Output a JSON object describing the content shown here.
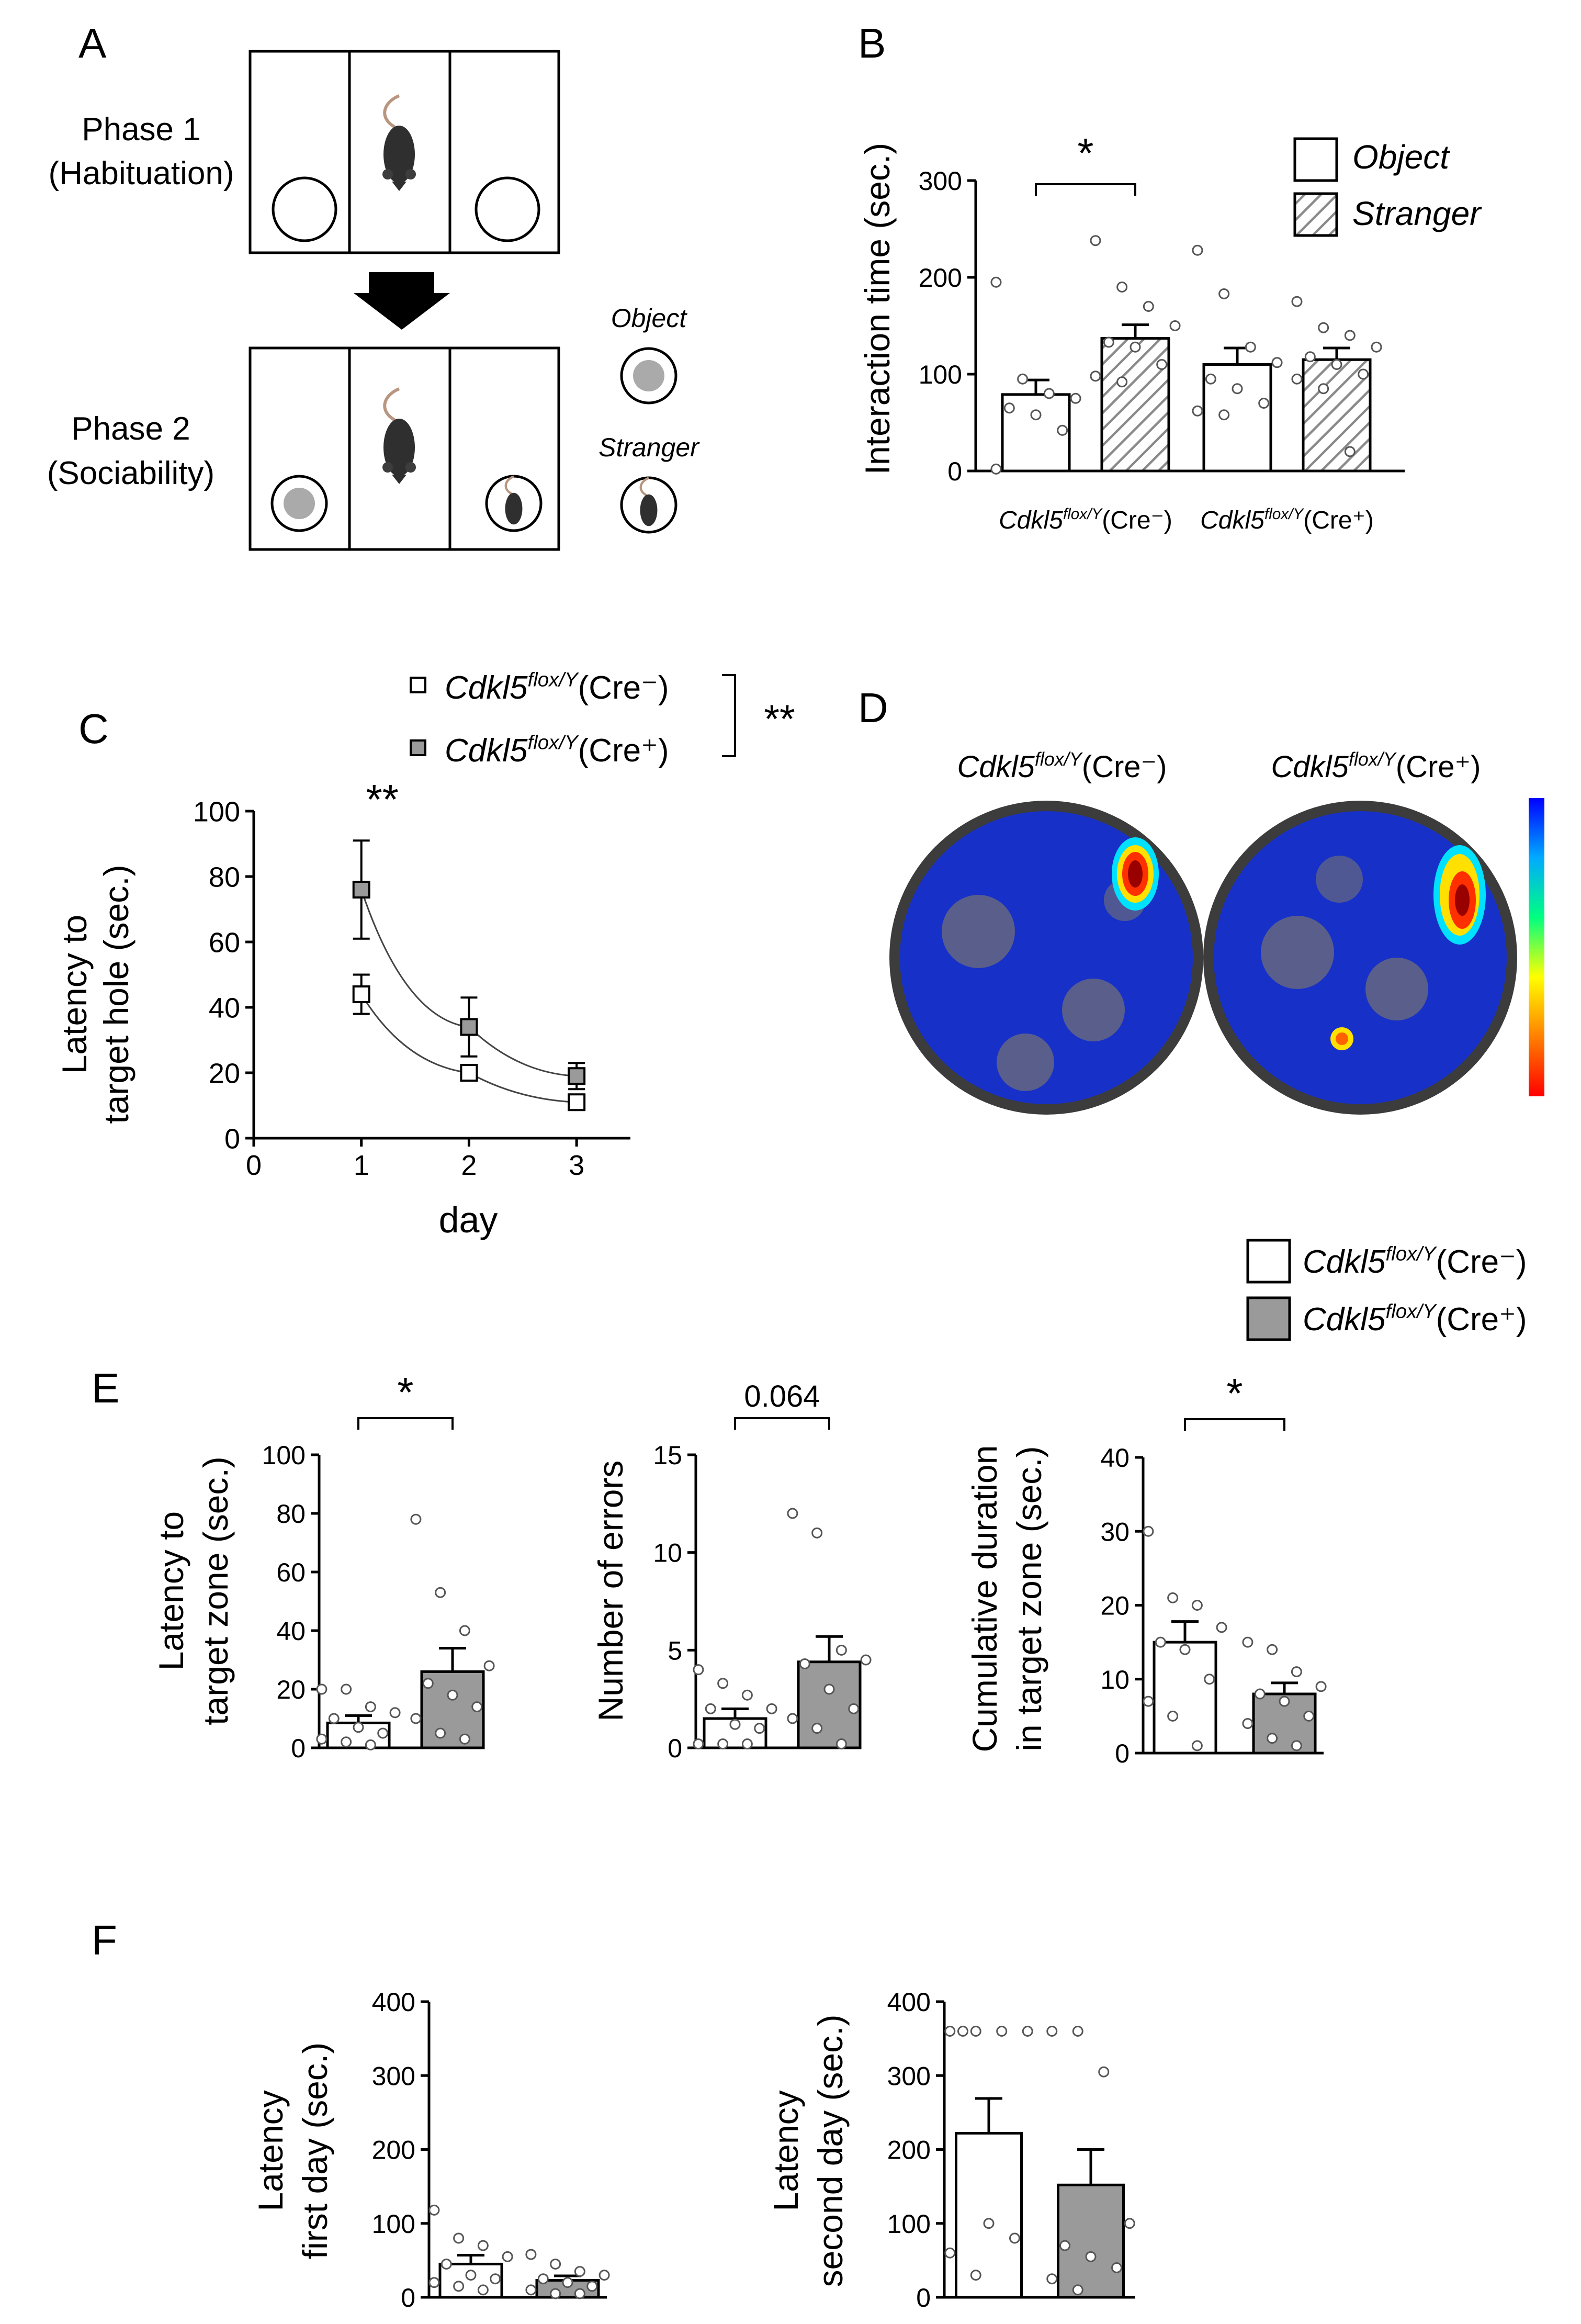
{
  "panels": {
    "A": {
      "label": "A",
      "phase1": [
        "Phase 1",
        "(Habituation)"
      ],
      "phase2": [
        "Phase 2",
        "(Sociability)"
      ],
      "object_label": "Object",
      "stranger_label": "Stranger"
    },
    "B": {
      "label": "B",
      "sig": "*"
    },
    "C": {
      "label": "C",
      "sig_day1": "**",
      "sig_group": "**"
    },
    "D": {
      "label": "D"
    },
    "E": {
      "label": "E"
    },
    "F": {
      "label": "F"
    }
  },
  "genotypes": {
    "base": "Cdkl5",
    "sup": "flox/Y",
    "cre_neg": "(Cre⁻)",
    "cre_pos": "(Cre⁺)"
  },
  "heatmap_colorbar": [
    "#0000ff",
    "#00aaff",
    "#00ff80",
    "#ffff00",
    "#ff8000",
    "#ff0000"
  ],
  "colors": {
    "cre_neg": "#ffffff",
    "cre_pos": "#9a9a9a",
    "stranger_hatch": "#8a8a8a"
  },
  "chart_data": [
    {
      "id": "B",
      "type": "bar",
      "ylabel": "Interaction time (sec.)",
      "ylim": [
        0,
        300
      ],
      "yticks": [
        0,
        100,
        200,
        300
      ],
      "legend": [
        "Object",
        "Stranger"
      ],
      "groups": [
        "Cdkl5 flox/Y (Cre⁻)",
        "Cdkl5 flox/Y (Cre⁺)"
      ],
      "series": [
        {
          "name": "Object",
          "values": [
            79,
            110
          ],
          "sem": [
            15,
            17
          ],
          "points": [
            [
              195,
              95,
              80,
              75,
              65,
              58,
              42,
              2
            ],
            [
              228,
              183,
              128,
              112,
              95,
              85,
              70,
              62,
              58
            ]
          ]
        },
        {
          "name": "Stranger",
          "values": [
            137,
            115
          ],
          "sem": [
            14,
            12
          ],
          "points": [
            [
              238,
              190,
              170,
              150,
              133,
              128,
              110,
              98,
              92
            ],
            [
              175,
              148,
              140,
              128,
              118,
              110,
              100,
              95,
              85,
              20
            ]
          ]
        }
      ],
      "sig": {
        "between": [
          "Object Cre⁻",
          "Stranger Cre⁻"
        ],
        "label": "*"
      }
    },
    {
      "id": "C",
      "type": "line",
      "xlabel": "day",
      "ylabel": "Latency to target hole (sec.)",
      "xlim": [
        0,
        3.5
      ],
      "xticks": [
        0,
        1,
        2,
        3
      ],
      "ylim": [
        0,
        100
      ],
      "yticks": [
        0,
        20,
        40,
        60,
        80,
        100
      ],
      "x": [
        1,
        2,
        3
      ],
      "series": [
        {
          "name": "Cdkl5 flox/Y (Cre⁻)",
          "values": [
            44,
            20,
            11
          ],
          "sem": [
            6,
            2,
            2
          ]
        },
        {
          "name": "Cdkl5 flox/Y (Cre⁺)",
          "values": [
            76,
            34,
            19
          ],
          "sem": [
            15,
            9,
            4
          ]
        }
      ]
    },
    {
      "id": "E1",
      "type": "bar",
      "ylabel": "Latency to target zone (sec.)",
      "ylim": [
        0,
        100
      ],
      "yticks": [
        0,
        20,
        40,
        60,
        80,
        100
      ],
      "categories": [
        "Cre⁻",
        "Cre⁺"
      ],
      "values": [
        8.5,
        26
      ],
      "sem": [
        2.5,
        8
      ],
      "points": [
        [
          20,
          20,
          14,
          12,
          10,
          7,
          5,
          3,
          2,
          1
        ],
        [
          78,
          53,
          40,
          28,
          22,
          18,
          14,
          10,
          5,
          3
        ]
      ],
      "sig": "*"
    },
    {
      "id": "E2",
      "type": "bar",
      "ylabel": "Number of errors",
      "ylim": [
        0,
        15
      ],
      "yticks": [
        0,
        5,
        10,
        15
      ],
      "categories": [
        "Cre⁻",
        "Cre⁺"
      ],
      "values": [
        1.5,
        4.4
      ],
      "sem": [
        0.5,
        1.3
      ],
      "points": [
        [
          4,
          3.3,
          2.7,
          2,
          2,
          1.2,
          1,
          0.2,
          0.2,
          0.2
        ],
        [
          12,
          11,
          5,
          4.5,
          4.3,
          3,
          2,
          1.5,
          1,
          0.2
        ]
      ],
      "sig": "0.064"
    },
    {
      "id": "E3",
      "type": "bar",
      "ylabel": "Cumulative duration in target zone (sec.)",
      "ylim": [
        0,
        40
      ],
      "yticks": [
        0,
        10,
        20,
        30,
        40
      ],
      "categories": [
        "Cre⁻",
        "Cre⁺"
      ],
      "values": [
        15,
        8
      ],
      "sem": [
        2.8,
        1.5
      ],
      "points": [
        [
          30,
          21,
          20,
          17,
          15,
          14,
          10,
          7,
          5,
          1
        ],
        [
          15,
          14,
          11,
          9,
          8,
          7,
          5,
          4,
          2,
          1
        ]
      ],
      "sig": "*"
    },
    {
      "id": "F1",
      "type": "bar",
      "ylabel": "Latency first day (sec.)",
      "ylim": [
        0,
        400
      ],
      "yticks": [
        0,
        100,
        200,
        300,
        400
      ],
      "categories": [
        "Cre⁻",
        "Cre⁺"
      ],
      "values": [
        45,
        23
      ],
      "sem": [
        12,
        6
      ],
      "points": [
        [
          118,
          80,
          70,
          55,
          45,
          30,
          25,
          20,
          15,
          10
        ],
        [
          58,
          45,
          35,
          30,
          25,
          20,
          15,
          10,
          5,
          5
        ]
      ]
    },
    {
      "id": "F2",
      "type": "bar",
      "ylabel": "Latency second day (sec.)",
      "ylim": [
        0,
        400
      ],
      "yticks": [
        0,
        100,
        200,
        300,
        400
      ],
      "categories": [
        "Cre⁻",
        "Cre⁺"
      ],
      "values": [
        222,
        152
      ],
      "sem": [
        47,
        48
      ],
      "points": [
        [
          360,
          360,
          360,
          360,
          360,
          100,
          80,
          60,
          30
        ],
        [
          360,
          360,
          305,
          100,
          70,
          55,
          40,
          25,
          10
        ]
      ]
    }
  ]
}
